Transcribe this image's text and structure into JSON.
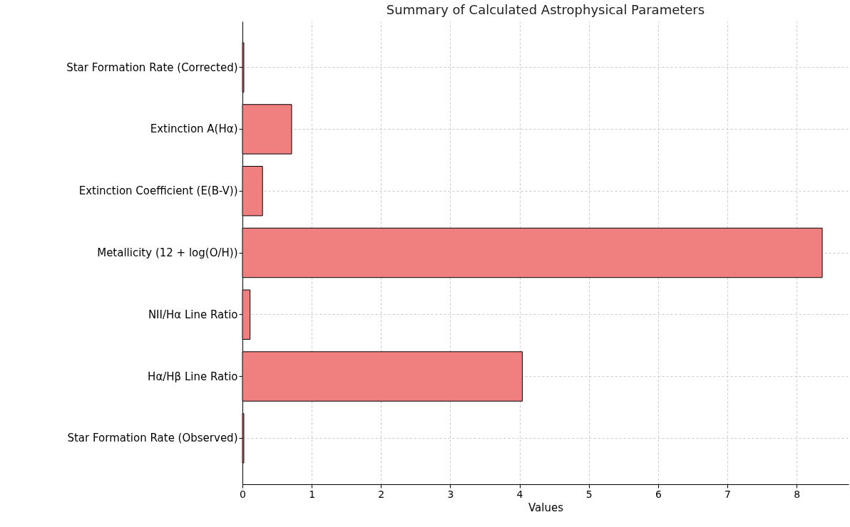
{
  "chart_data": {
    "type": "bar",
    "orientation": "horizontal",
    "title": "Summary of Calculated Astrophysical Parameters",
    "xlabel": "Values",
    "categories": [
      "Star Formation Rate (Corrected)",
      "Extinction A(Hα)",
      "Extinction Coefficient (E(B-V))",
      "Metallicity (12 + log(O/H))",
      "NII/Hα Line Ratio",
      "Hα/Hβ Line Ratio",
      "Star Formation Rate (Observed)"
    ],
    "values": [
      0.02,
      0.71,
      0.29,
      8.37,
      0.11,
      4.04,
      0.02
    ],
    "color": "#f08080",
    "xlim": [
      0,
      8.75
    ],
    "xticks": [
      0,
      1,
      2,
      3,
      4,
      5,
      6,
      7,
      8
    ],
    "grid": true
  }
}
